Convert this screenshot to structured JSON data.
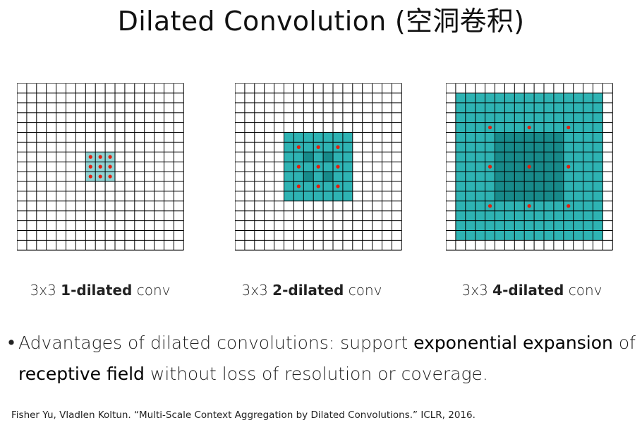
{
  "title": "Dilated Convolution (空洞卷积)",
  "colors": {
    "grid_line": "#000000",
    "light_teal": "#8fd3d3",
    "mid_teal": "#2eb3b3",
    "dark_teal": "#178a8a",
    "dot": "#e02010"
  },
  "panels": [
    {
      "caption_prefix": "3x3 ",
      "caption_bold": "1-dilated",
      "caption_suffix": " conv",
      "dilation": 1
    },
    {
      "caption_prefix": "3x3 ",
      "caption_bold": "2-dilated",
      "caption_suffix": " conv",
      "dilation": 2
    },
    {
      "caption_prefix": "3x3 ",
      "caption_bold": "4-dilated",
      "caption_suffix": " conv",
      "dilation": 4
    }
  ],
  "bullet": {
    "dot": "•",
    "line1_a": "Advantages of dilated convolutions: support ",
    "line1_b": "exponential expansion",
    "line1_c": " of the",
    "line2_a": "receptive field",
    "line2_b": " without loss of resolution or coverage."
  },
  "citation": "Fisher Yu, Vladlen Koltun. “Multi-Scale Context Aggregation by Dilated Convolutions.” ICLR, 2016."
}
